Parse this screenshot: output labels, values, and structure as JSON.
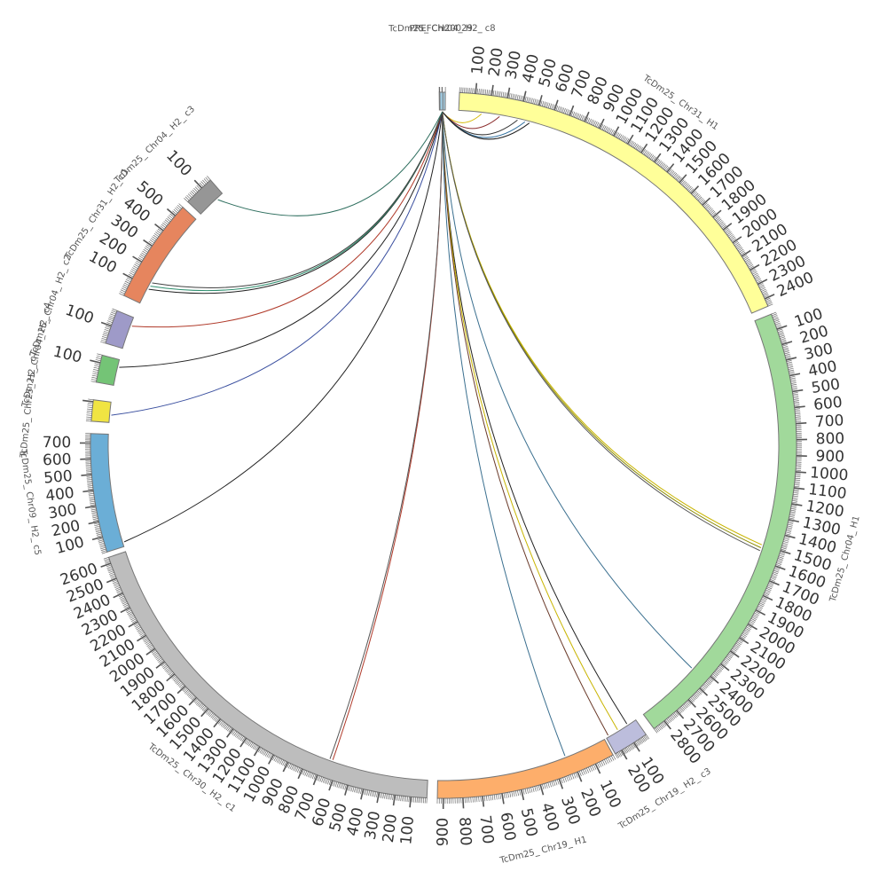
{
  "diagram": {
    "type": "circos",
    "segments": [
      {
        "label": "TcDm25_ Chr04_ H2_ c8",
        "color": "#a6cee3",
        "length": 20,
        "ticks": []
      },
      {
        "label": "TcDm25_ Chr31_ H1",
        "color": "#ffff99",
        "length": 2450,
        "ticks": [
          "100",
          "200",
          "300",
          "400",
          "500",
          "600",
          "700",
          "800",
          "900",
          "1000",
          "1100",
          "1200",
          "1300",
          "1400",
          "1500",
          "1600",
          "1700",
          "1800",
          "1900",
          "2000",
          "2100",
          "2200",
          "2300",
          "2400"
        ]
      },
      {
        "label": "TcDm25_ Chr04_ H1",
        "color": "#a1d99b",
        "length": 2880,
        "ticks": [
          "100",
          "200",
          "300",
          "400",
          "500",
          "600",
          "700",
          "800",
          "900",
          "1000",
          "1100",
          "1200",
          "1300",
          "1400",
          "1500",
          "1600",
          "1700",
          "1800",
          "1900",
          "2000",
          "2100",
          "2200",
          "2300",
          "2400",
          "2500",
          "2600",
          "2700",
          "2800"
        ]
      },
      {
        "label": "TcDm25_ Chr19_ H2_ c3",
        "color": "#bcbddc",
        "length": 250,
        "ticks": [
          "100",
          "200"
        ]
      },
      {
        "label": "TcDm25_ Chr19_ H1",
        "color": "#fdae6b",
        "length": 930,
        "ticks": [
          "100",
          "200",
          "300",
          "400",
          "500",
          "600",
          "700",
          "800",
          "900"
        ]
      },
      {
        "label": "TcDm25_ Chr30_ H2_ c1",
        "color": "#bdbdbd",
        "length": 2640,
        "ticks": [
          "100",
          "200",
          "300",
          "400",
          "500",
          "600",
          "700",
          "800",
          "900",
          "1000",
          "1100",
          "1200",
          "1300",
          "1400",
          "1500",
          "1600",
          "1700",
          "1800",
          "1900",
          "2000",
          "2100",
          "2200",
          "2300",
          "2400",
          "2500",
          "2600"
        ]
      },
      {
        "label": "TcDm25_ Chr09_ H2_ c5",
        "color": "#6baed6",
        "length": 760,
        "ticks": [
          "100",
          "200",
          "300",
          "400",
          "500",
          "600",
          "700"
        ]
      },
      {
        "label": "TcDm25_ Chr25_ H2_ c7",
        "color": "#f0e442",
        "length": 110,
        "ticks": []
      },
      {
        "label": "TcDm25_ Chr04_ H2_ c4",
        "color": "#74c476",
        "length": 140,
        "ticks": [
          "100"
        ]
      },
      {
        "label": "TcDm25_ Chr04_ H2_ c2",
        "color": "#9e9ac8",
        "length": 190,
        "ticks": [
          "100"
        ]
      },
      {
        "label": "TcDm25_ Chr31_ H2_ c1",
        "color": "#e6855e",
        "length": 560,
        "ticks": [
          "100",
          "200",
          "300",
          "400",
          "500"
        ]
      },
      {
        "label": "TcDm25_ Chr04_ H2_ c3",
        "color": "#969696",
        "length": 160,
        "ticks": [
          "100"
        ]
      },
      {
        "label": "PREFCH20029",
        "color": "#9ecae1",
        "length": 15,
        "ticks": []
      }
    ],
    "links": [
      {
        "from": 0,
        "to": 1,
        "toPos": 150,
        "color": "#d4b800"
      },
      {
        "from": 0,
        "to": 1,
        "toPos": 270,
        "color": "#8a2a2a"
      },
      {
        "from": 0,
        "to": 1,
        "toPos": 390,
        "color": "#333333"
      },
      {
        "from": 0,
        "to": 1,
        "toPos": 440,
        "color": "#2f6f9f"
      },
      {
        "from": 0,
        "to": 1,
        "toPos": 470,
        "color": "#222222"
      },
      {
        "from": 0,
        "to": 2,
        "toPos": 1500,
        "color": "#c8b400"
      },
      {
        "from": 0,
        "to": 2,
        "toPos": 1520,
        "color": "#8a8a00"
      },
      {
        "from": 0,
        "to": 2,
        "toPos": 1540,
        "color": "#555555"
      },
      {
        "from": 0,
        "to": 2,
        "toPos": 2440,
        "color": "#3a6f8f"
      },
      {
        "from": 0,
        "to": 3,
        "toPos": 70,
        "color": "#222222"
      },
      {
        "from": 0,
        "to": 3,
        "toPos": 150,
        "color": "#c8b400"
      },
      {
        "from": 0,
        "to": 3,
        "toPos": 230,
        "color": "#6a3a2a"
      },
      {
        "from": 0,
        "to": 4,
        "toPos": 230,
        "color": "#3a6f8f"
      },
      {
        "from": 0,
        "to": 5,
        "toPos": 640,
        "color": "#b03a2a"
      },
      {
        "from": 0,
        "to": 5,
        "toPos": 660,
        "color": "#555555"
      },
      {
        "from": 0,
        "to": 6,
        "toPos": 30,
        "color": "#222222"
      },
      {
        "from": 0,
        "to": 7,
        "toPos": 40,
        "color": "#3a4f9f"
      },
      {
        "from": 0,
        "to": 8,
        "toPos": 100,
        "color": "#222222"
      },
      {
        "from": 0,
        "to": 9,
        "toPos": 140,
        "color": "#b03a2a"
      },
      {
        "from": 0,
        "to": 10,
        "toPos": 90,
        "color": "#222222"
      },
      {
        "from": 0,
        "to": 10,
        "toPos": 110,
        "color": "#2f8f6f"
      },
      {
        "from": 0,
        "to": 10,
        "toPos": 130,
        "color": "#444444"
      },
      {
        "from": 0,
        "to": 11,
        "toPos": 120,
        "color": "#2f6f5f"
      }
    ]
  }
}
